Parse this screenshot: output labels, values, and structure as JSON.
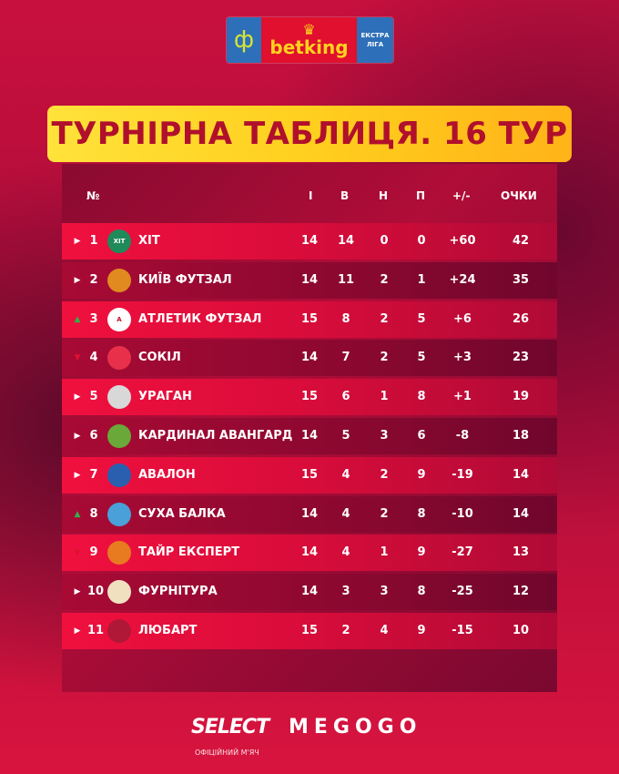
{
  "sponsor": {
    "brand": "betking",
    "league": "ЕКСТРА ЛІГА",
    "colors": {
      "blue": "#2d6fb8",
      "red": "#e0102e",
      "yellow": "#ffd21e"
    }
  },
  "title": "ТУРНІРНА ТАБЛИЦЯ. 16 ТУР",
  "headers": {
    "pos": "№",
    "played": "І",
    "won": "В",
    "drawn": "Н",
    "lost": "П",
    "diff": "+/-",
    "points": "ОЧКИ"
  },
  "trend_colors": {
    "up": "#2fb34a",
    "down": "#e0102e",
    "same": "#ffffff"
  },
  "rows": [
    {
      "trend": "same",
      "pos": "1",
      "team": "ХІТ",
      "p": "14",
      "w": "14",
      "d": "0",
      "l": "0",
      "gd": "+60",
      "pts": "42",
      "badge": "ХІТ",
      "badge_color": "#1f8a5a"
    },
    {
      "trend": "same",
      "pos": "2",
      "team": "КИЇВ ФУТЗАЛ",
      "p": "14",
      "w": "11",
      "d": "2",
      "l": "1",
      "gd": "+24",
      "pts": "35",
      "badge": "",
      "badge_color": "#e08a20"
    },
    {
      "trend": "up",
      "pos": "3",
      "team": "АТЛЕТИК ФУТЗАЛ",
      "p": "15",
      "w": "8",
      "d": "2",
      "l": "5",
      "gd": "+6",
      "pts": "26",
      "badge": "A",
      "badge_color": "#ffffff"
    },
    {
      "trend": "down",
      "pos": "4",
      "team": "СОКІЛ",
      "p": "14",
      "w": "7",
      "d": "2",
      "l": "5",
      "gd": "+3",
      "pts": "23",
      "badge": "",
      "badge_color": "#e8304a"
    },
    {
      "trend": "same",
      "pos": "5",
      "team": "УРАГАН",
      "p": "15",
      "w": "6",
      "d": "1",
      "l": "8",
      "gd": "+1",
      "pts": "19",
      "badge": "",
      "badge_color": "#d8d8d8"
    },
    {
      "trend": "same",
      "pos": "6",
      "team": "КАРДИНАЛ АВАНГАРД",
      "p": "14",
      "w": "5",
      "d": "3",
      "l": "6",
      "gd": "-8",
      "pts": "18",
      "badge": "",
      "badge_color": "#6aa83a"
    },
    {
      "trend": "same",
      "pos": "7",
      "team": "АВАЛОН",
      "p": "15",
      "w": "4",
      "d": "2",
      "l": "9",
      "gd": "-19",
      "pts": "14",
      "badge": "",
      "badge_color": "#2a5fb0"
    },
    {
      "trend": "up",
      "pos": "8",
      "team": "СУХА БАЛКА",
      "p": "14",
      "w": "4",
      "d": "2",
      "l": "8",
      "gd": "-10",
      "pts": "14",
      "badge": "",
      "badge_color": "#4aa0d8"
    },
    {
      "trend": "down",
      "pos": "9",
      "team": "ТАЙР ЕКСПЕРТ",
      "p": "14",
      "w": "4",
      "d": "1",
      "l": "9",
      "gd": "-27",
      "pts": "13",
      "badge": "",
      "badge_color": "#e87a20"
    },
    {
      "trend": "same",
      "pos": "10",
      "team": "ФУРНІТУРА",
      "p": "14",
      "w": "3",
      "d": "3",
      "l": "8",
      "gd": "-25",
      "pts": "12",
      "badge": "",
      "badge_color": "#f0e0c0"
    },
    {
      "trend": "same",
      "pos": "11",
      "team": "ЛЮБАРТ",
      "p": "15",
      "w": "2",
      "d": "4",
      "l": "9",
      "gd": "-15",
      "pts": "10",
      "badge": "",
      "badge_color": "#b01838"
    }
  ],
  "footer": {
    "select": "SELECT",
    "select_sub": "ОФІЦІЙНИЙ М'ЯЧ",
    "megogo": "MEGOGO"
  }
}
